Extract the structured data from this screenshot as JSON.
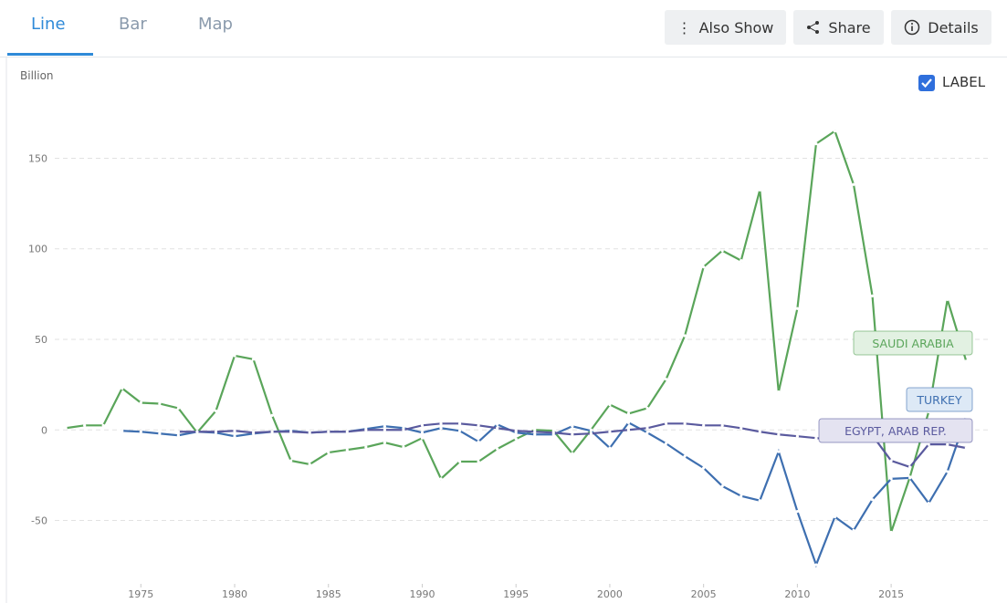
{
  "tabs": [
    "Line",
    "Bar",
    "Map"
  ],
  "buttons": [
    "Also Show",
    "Share",
    "Details"
  ],
  "checkbox_label": "LABEL",
  "chart_data": {
    "type": "line",
    "y_label": "Billion",
    "x": [
      1971,
      1972,
      1973,
      1974,
      1975,
      1976,
      1977,
      1978,
      1979,
      1980,
      1981,
      1982,
      1983,
      1984,
      1985,
      1986,
      1987,
      1988,
      1989,
      1990,
      1991,
      1992,
      1993,
      1994,
      1995,
      1996,
      1997,
      1998,
      1999,
      2000,
      2001,
      2002,
      2003,
      2004,
      2005,
      2006,
      2007,
      2008,
      2009,
      2010,
      2011,
      2012,
      2013,
      2014,
      2015,
      2016,
      2017,
      2018,
      2019
    ],
    "series": [
      {
        "name": "SAUDI ARABIA",
        "color": "#5aa55a",
        "values": [
          1,
          2.5,
          2.5,
          23,
          15,
          14.5,
          12,
          -1.5,
          10.5,
          41,
          39,
          8,
          -17,
          -19,
          -12.5,
          -11,
          -9.5,
          -7,
          -9.5,
          -4.5,
          -27,
          -17.5,
          -17.5,
          -10.5,
          -5,
          0,
          -0.5,
          -13,
          0,
          14,
          9,
          12,
          28,
          52,
          90,
          99,
          93.5,
          132.5,
          21,
          67,
          158,
          165,
          135.5,
          74,
          -56.5,
          -26,
          10,
          72,
          38
        ]
      },
      {
        "name": "TURKEY",
        "color": "#3e6fb0",
        "values": [
          null,
          null,
          null,
          -0.5,
          -1,
          -2,
          -3,
          -1,
          -1.5,
          -3.5,
          -2,
          -1,
          -0.5,
          -1.5,
          -1,
          -1,
          0.5,
          2,
          1,
          -1.5,
          1,
          -0.5,
          -6.5,
          3,
          -1.5,
          -2.5,
          -2.5,
          2,
          -0.5,
          -10,
          4,
          -1.5,
          -7.5,
          -14.5,
          -21,
          -31,
          -36.5,
          -39,
          -12,
          -45,
          -74.5,
          -48,
          -55.5,
          -38.5,
          -27,
          -26.5,
          -40.5,
          -23,
          7
        ]
      },
      {
        "name": "EGYPT, ARAB REP.",
        "color": "#5a5a9e",
        "values": [
          null,
          null,
          null,
          null,
          null,
          null,
          -1,
          -1,
          -1,
          -0.5,
          -1.5,
          -1,
          -1,
          -1.5,
          -1,
          -1,
          0,
          0,
          0,
          2.5,
          3.5,
          3.5,
          2.5,
          1,
          -0.5,
          -1,
          -1.5,
          -2.5,
          -2,
          -1,
          0,
          1,
          3.5,
          3.5,
          2.5,
          2.5,
          1,
          -1,
          -2.5,
          -3.5,
          -4.5,
          -5.5,
          -5,
          -3,
          -17,
          -20.5,
          -8,
          -8,
          -10
        ]
      }
    ],
    "xlim": [
      1970.8,
      2020.3
    ],
    "xticks": [
      1975,
      1980,
      1985,
      1990,
      1995,
      2000,
      2005,
      2010,
      2015
    ],
    "ylim": [
      -85,
      185
    ],
    "yticks": [
      -50,
      0,
      50,
      100,
      150
    ],
    "grid": true
  }
}
